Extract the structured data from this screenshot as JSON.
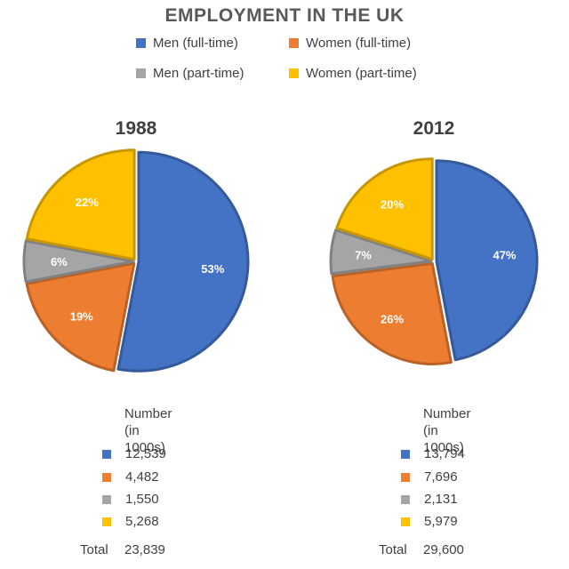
{
  "title": "EMPLOYMENT IN THE UK",
  "colors": {
    "men_full": "#4472C4",
    "women_full": "#ED7D31",
    "men_part": "#A5A5A5",
    "women_part": "#FFC000"
  },
  "legend": [
    {
      "label": "Men (full-time)",
      "color": "#4472C4"
    },
    {
      "label": "Women (full-time)",
      "color": "#ED7D31"
    },
    {
      "label": "Men (part-time)",
      "color": "#A5A5A5"
    },
    {
      "label": "Women (part-time)",
      "color": "#FFC000"
    }
  ],
  "chart_data": [
    {
      "type": "pie",
      "title": "1988",
      "categories": [
        "Men (full-time)",
        "Women (full-time)",
        "Men (part-time)",
        "Women (part-time)"
      ],
      "values": [
        53,
        19,
        6,
        22
      ],
      "labels": [
        "53%",
        "19%",
        "6%",
        "22%"
      ],
      "colors": [
        "#4472C4",
        "#ED7D31",
        "#A5A5A5",
        "#FFC000"
      ]
    },
    {
      "type": "pie",
      "title": "2012",
      "categories": [
        "Men (full-time)",
        "Women (full-time)",
        "Men (part-time)",
        "Women (part-time)"
      ],
      "values": [
        47,
        26,
        7,
        20
      ],
      "labels": [
        "47%",
        "26%",
        "7%",
        "20%"
      ],
      "colors": [
        "#4472C4",
        "#ED7D31",
        "#A5A5A5",
        "#FFC000"
      ]
    }
  ],
  "tables": [
    {
      "header_line1": "Number",
      "header_line2": "(in 1000s)",
      "rows": [
        "12,539",
        "4,482",
        "1,550",
        "5,268"
      ],
      "total_label": "Total",
      "total_value": "23,839"
    },
    {
      "header_line1": "Number",
      "header_line2": "(in 1000s)",
      "rows": [
        "13,794",
        "7,696",
        "2,131",
        "5,979"
      ],
      "total_label": "Total",
      "total_value": "29,600"
    }
  ]
}
